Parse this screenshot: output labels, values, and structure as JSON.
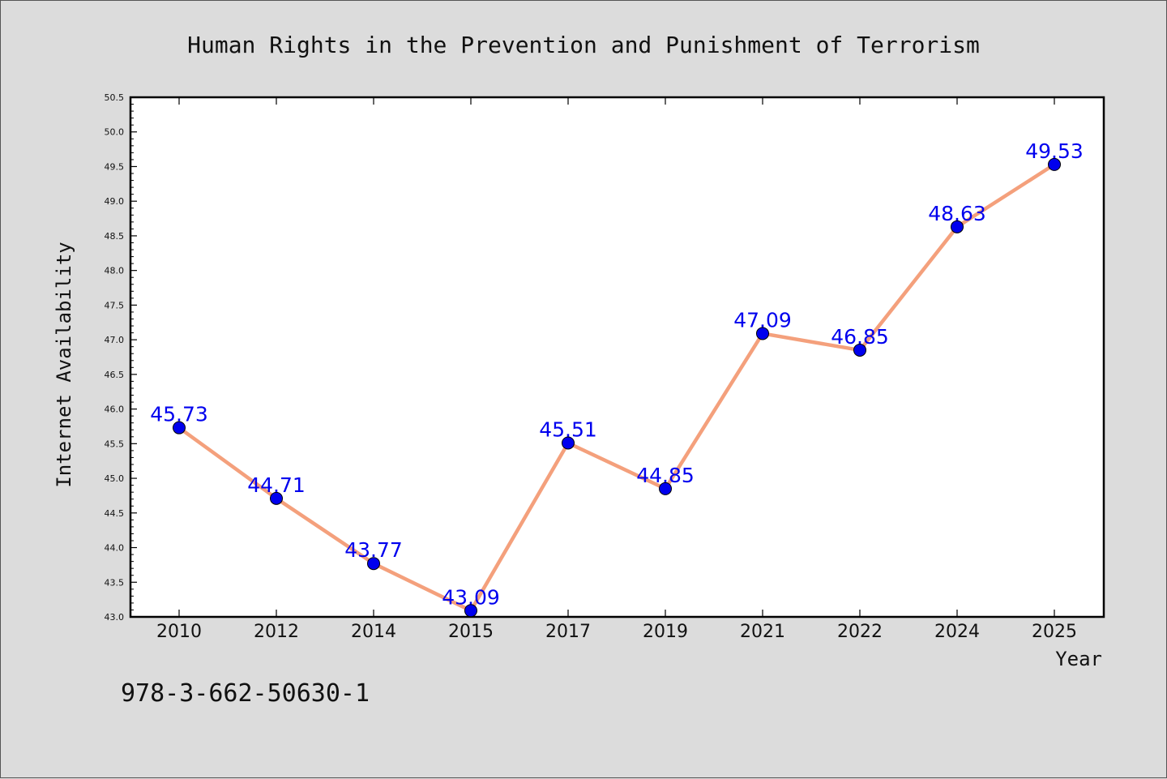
{
  "chart_data": {
    "type": "line",
    "title": "Human Rights in the Prevention and Punishment of Terrorism",
    "xlabel": "Year",
    "ylabel": "Internet Availability",
    "categories": [
      "2010",
      "2012",
      "2014",
      "2015",
      "2017",
      "2019",
      "2021",
      "2022",
      "2024",
      "2025"
    ],
    "values": [
      45.73,
      44.71,
      43.77,
      43.09,
      45.51,
      44.85,
      47.09,
      46.85,
      48.63,
      49.53
    ],
    "data_labels": [
      "45.73",
      "44.71",
      "43.77",
      "43.09",
      "45.51",
      "44.85",
      "47.09",
      "46.85",
      "48.63",
      "49.53"
    ],
    "ylim": [
      43.0,
      50.5
    ],
    "yticks": [
      "43.0",
      "43.5",
      "44.0",
      "44.5",
      "45.0",
      "45.5",
      "46.0",
      "46.5",
      "47.0",
      "47.5",
      "48.0",
      "48.5",
      "49.0",
      "49.5",
      "50.0",
      "50.5"
    ],
    "grid": false,
    "line_color": "#f4a07c",
    "marker_color": "#0000ee",
    "label_color": "#0000ee"
  },
  "footer": {
    "code": "978-3-662-50630-1"
  }
}
